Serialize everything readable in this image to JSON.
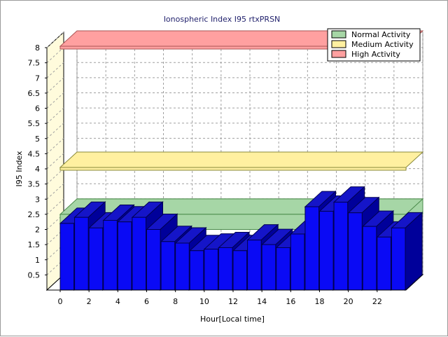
{
  "chart_data": {
    "type": "bar",
    "title": "Ionospheric Index I95 rtxPRSN",
    "xlabel": "Hour[Local time]",
    "ylabel": "I95 Index",
    "ylim": [
      0,
      8
    ],
    "xlim": [
      0,
      24
    ],
    "y_ticks": [
      "0.5",
      "1",
      "1.5",
      "2",
      "2.5",
      "3",
      "3.5",
      "4",
      "4.5",
      "5",
      "5.5",
      "6",
      "6.5",
      "7",
      "7.5",
      "8"
    ],
    "x_ticks": [
      "0",
      "2",
      "4",
      "6",
      "8",
      "10",
      "12",
      "14",
      "16",
      "18",
      "20",
      "22"
    ],
    "grid": true,
    "legend_position": "top-right",
    "hours": [
      0,
      1,
      2,
      3,
      4,
      5,
      6,
      7,
      8,
      9,
      10,
      11,
      12,
      13,
      14,
      15,
      16,
      17,
      18,
      19,
      20,
      21,
      22,
      23
    ],
    "values": [
      2.2,
      2.4,
      2.05,
      2.3,
      2.25,
      2.4,
      2.0,
      1.6,
      1.55,
      1.3,
      1.35,
      1.4,
      1.3,
      1.65,
      1.5,
      1.4,
      1.85,
      2.75,
      2.6,
      2.9,
      2.55,
      2.1,
      1.75,
      2.05
    ],
    "bands": [
      {
        "name": "Normal Activity",
        "min": 2.0,
        "max": 2.5,
        "color": "#a6d6a6",
        "edge": "#4a8a4a"
      },
      {
        "name": "Medium Activity",
        "min": 4.0,
        "max": 4.0,
        "color": "#fff0a0",
        "edge": "#8a8a3a"
      },
      {
        "name": "High Activity",
        "min": 8.0,
        "max": 8.0,
        "color": "#ffa0a0",
        "edge": "#aa5555"
      }
    ],
    "colors": {
      "bar_front": "#0a0af5",
      "bar_top": "#1515c8",
      "bar_side": "#00009a",
      "bar_edge": "#000050",
      "left_wall": "#fffbdc",
      "back_wall": "#ffffff",
      "grid": "#a0a0a0"
    }
  }
}
